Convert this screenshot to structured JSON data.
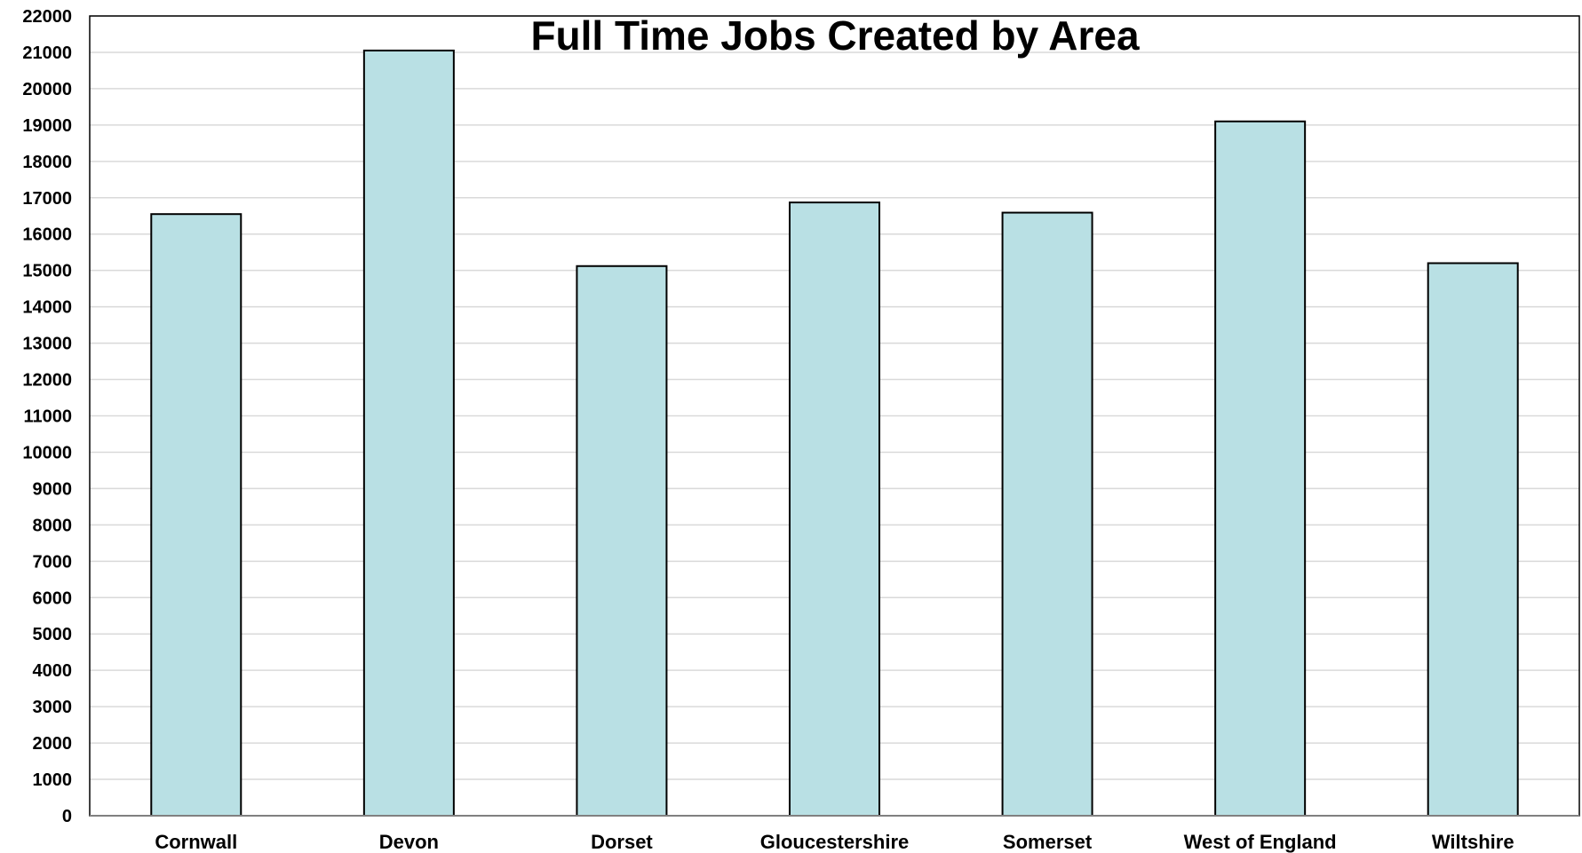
{
  "chart_data": {
    "type": "bar",
    "title": "Full Time Jobs Created by Area",
    "xlabel": "",
    "ylabel": "",
    "categories": [
      "Cornwall",
      "Devon",
      "Dorset",
      "Gloucestershire",
      "Somerset",
      "West of England",
      "Wiltshire"
    ],
    "values": [
      16550,
      21050,
      15120,
      16870,
      16590,
      19100,
      15200
    ],
    "ylim": [
      0,
      22000
    ],
    "ytick_step": 1000,
    "grid": true,
    "legend": "none"
  },
  "colors": {
    "bar_fill": "#b9e0e4",
    "bar_stroke": "#000000",
    "grid": "#d9d9d9",
    "axis": "#000000",
    "background": "#ffffff"
  }
}
